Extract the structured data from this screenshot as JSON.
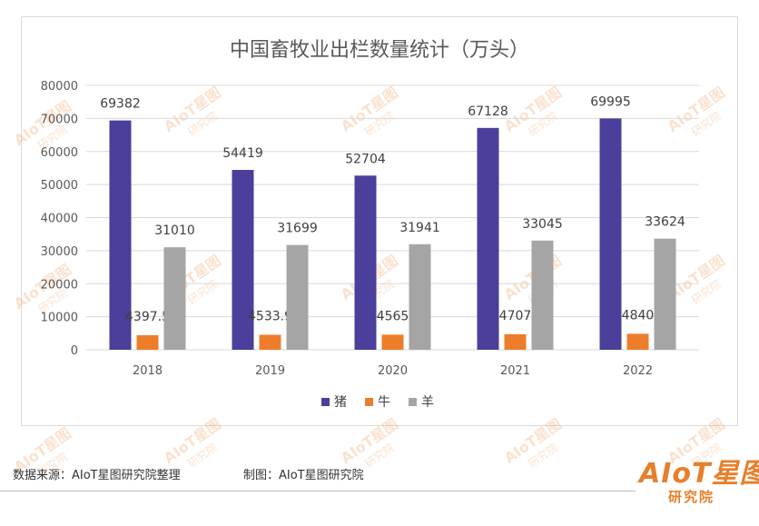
{
  "chart_data": {
    "type": "bar",
    "title": "中国畜牧业出栏数量统计（万头）",
    "categories": [
      "2018",
      "2019",
      "2020",
      "2021",
      "2022"
    ],
    "series": [
      {
        "name": "猪",
        "color": "#4a3f9a",
        "values": [
          69382,
          54419,
          52704,
          67128,
          69995
        ],
        "labels": [
          "69382",
          "54419",
          "52704",
          "67128",
          "69995"
        ]
      },
      {
        "name": "牛",
        "color": "#ee7d2b",
        "values": [
          4397.5,
          4533.9,
          4565,
          4707,
          4840
        ],
        "labels": [
          "4397.5",
          "4533.9",
          "4565",
          "4707",
          "4840"
        ]
      },
      {
        "name": "羊",
        "color": "#a5a5a5",
        "values": [
          31010,
          31699,
          31941,
          33045,
          33624
        ],
        "labels": [
          "31010",
          "31699",
          "31941",
          "33045",
          "33624"
        ]
      }
    ],
    "ylim": [
      0,
      80000
    ],
    "yticks": [
      "0",
      "10000",
      "20000",
      "30000",
      "40000",
      "50000",
      "60000",
      "70000",
      "80000"
    ],
    "grid": true,
    "legend_position": "bottom"
  },
  "watermark": {
    "brand": "AIoT星图",
    "sub": "研究院"
  },
  "footer": {
    "source": "数据来源：AIoT星图研究院整理",
    "maker": "制图：AIoT星图研究院"
  },
  "logo": {
    "main": "AIoT星图",
    "sub": "研究院",
    "color": "#e87f2a"
  }
}
